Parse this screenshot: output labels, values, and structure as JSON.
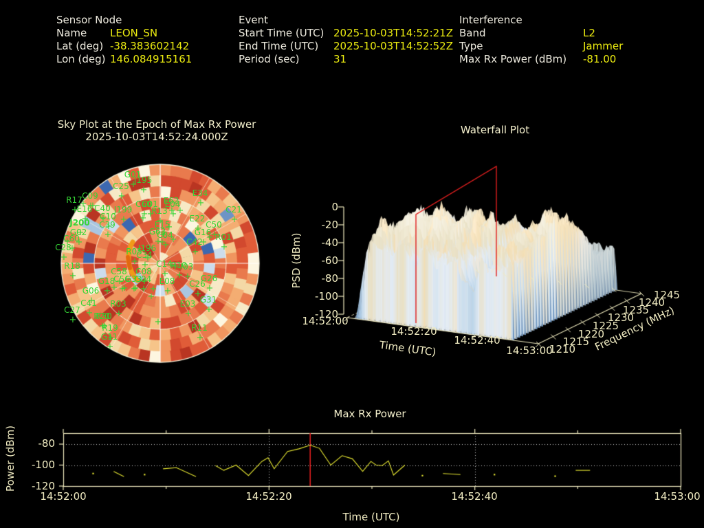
{
  "header": {
    "sensor": {
      "title": "Sensor Node",
      "rows": [
        {
          "label": "Name",
          "value": "LEON_SN"
        },
        {
          "label": "Lat (deg)",
          "value": "-38.383602142"
        },
        {
          "label": "Lon (deg)",
          "value": "146.084915161"
        }
      ]
    },
    "event": {
      "title": "Event",
      "rows": [
        {
          "label": "Start Time (UTC)",
          "value": "2025-10-03T14:52:21Z"
        },
        {
          "label": "End Time (UTC)",
          "value": "2025-10-03T14:52:52Z"
        },
        {
          "label": "Period (sec)",
          "value": "31"
        }
      ]
    },
    "interference": {
      "title": "Interference",
      "rows": [
        {
          "label": "Band",
          "value": "L2"
        },
        {
          "label": "Type",
          "value": "Jammer"
        },
        {
          "label": "Max Rx Power (dBm)",
          "value": "-81.00"
        }
      ]
    }
  },
  "sky": {
    "title_line1": "Sky Plot at the Epoch of Max Rx Power",
    "title_line2": "2025-10-03T14:52:24.000Z",
    "marker_color": "#35d435",
    "jammer_track_color": "#f09a18",
    "heat_palette": [
      "#b93522",
      "#d2492e",
      "#e05c38",
      "#e97a4d",
      "#f0955f",
      "#f4ad72",
      "#f6c489",
      "#f4d9a6",
      "#f7e9c6",
      "#fdf6e0",
      "#ccdcec",
      "#a9c6e2",
      "#6d94c6",
      "#3c68b0"
    ],
    "heat_weights": [
      6,
      12,
      16,
      14,
      12,
      10,
      8,
      6,
      5,
      3,
      4,
      2,
      1.5,
      1.5
    ]
  },
  "waterfall": {
    "title": "Waterfall Plot",
    "z_label": "PSD (dBm)",
    "z_ticks": [
      "0",
      "-20",
      "-40",
      "-60",
      "-80",
      "-100",
      "-120"
    ],
    "time_label": "Time (UTC)",
    "time_ticks": [
      "14:52:00",
      "14:52:20",
      "14:52:40",
      "14:53:00"
    ],
    "freq_label": "Frequency (MHz)",
    "freq_ticks": [
      "1210",
      "1215",
      "1220",
      "1225",
      "1230",
      "1235",
      "1240",
      "1245"
    ],
    "slice_color": "#e01f1f"
  },
  "timeseries": {
    "title": "Max Rx Power",
    "ylabel": "Power (dBm)",
    "xlabel": "Time (UTC)",
    "yticks": [
      "-80",
      "-100",
      "-120"
    ],
    "xticks": [
      "14:52:00",
      "14:52:20",
      "14:52:40",
      "14:53:00"
    ],
    "line_color": "#e8e832",
    "marker_line_color": "#e01f1f"
  },
  "chart_data": [
    {
      "type": "heatmap",
      "subtype": "polar-sky-plot",
      "title": "Sky Plot at the Epoch of Max Rx Power",
      "epoch": "2025-10-03T14:52:24.000Z",
      "rings_deg": [
        30,
        60,
        90
      ],
      "satellites": [
        {
          "id": "G01",
          "x": 193,
          "y": 254
        },
        {
          "id": "J195",
          "x": 208,
          "y": 262
        },
        {
          "id": "C25",
          "x": 176,
          "y": 271
        },
        {
          "id": "C09",
          "x": 131,
          "y": 285
        },
        {
          "id": "R17",
          "x": 108,
          "y": 291
        },
        {
          "id": "E34",
          "x": 291,
          "y": 281
        },
        {
          "id": "C21",
          "x": 340,
          "y": 305
        },
        {
          "id": "E16",
          "x": 123,
          "y": 304
        },
        {
          "id": "C40",
          "x": 149,
          "y": 303
        },
        {
          "id": "J199",
          "x": 179,
          "y": 305
        },
        {
          "id": "C60",
          "x": 209,
          "y": 297
        },
        {
          "id": "C01",
          "x": 218,
          "y": 297
        },
        {
          "id": "E62",
          "x": 249,
          "y": 292
        },
        {
          "id": "E04",
          "x": 251,
          "y": 297
        },
        {
          "id": "C10",
          "x": 157,
          "y": 315
        },
        {
          "id": "R13",
          "x": 232,
          "y": 307
        },
        {
          "id": "J200",
          "x": 116,
          "y": 324,
          "bold": true
        },
        {
          "id": "C39",
          "x": 156,
          "y": 327
        },
        {
          "id": "E15",
          "x": 236,
          "y": 327
        },
        {
          "id": "G63",
          "x": 229,
          "y": 337
        },
        {
          "id": "C04",
          "x": 240,
          "y": 342
        },
        {
          "id": "E22",
          "x": 287,
          "y": 318
        },
        {
          "id": "C50",
          "x": 311,
          "y": 327
        },
        {
          "id": "G16",
          "x": 295,
          "y": 338
        },
        {
          "id": "R01",
          "x": 325,
          "y": 345
        },
        {
          "id": "C42",
          "x": 283,
          "y": 352
        },
        {
          "id": "G02",
          "x": 114,
          "y": 338
        },
        {
          "id": "C60",
          "x": 104,
          "y": 347
        },
        {
          "id": "C28",
          "x": 92,
          "y": 360
        },
        {
          "id": "R18",
          "x": 105,
          "y": 387
        },
        {
          "id": "J196",
          "x": 214,
          "y": 361
        },
        {
          "id": "R05",
          "x": 195,
          "y": 366
        },
        {
          "id": "C34",
          "x": 210,
          "y": 371
        },
        {
          "id": "C14",
          "x": 239,
          "y": 384
        },
        {
          "id": "R10",
          "x": 260,
          "y": 386
        },
        {
          "id": "I03",
          "x": 272,
          "y": 388
        },
        {
          "id": "C58",
          "x": 173,
          "y": 395
        },
        {
          "id": "C08",
          "x": 209,
          "y": 395
        },
        {
          "id": "G26",
          "x": 304,
          "y": 405
        },
        {
          "id": "C26",
          "x": 287,
          "y": 413
        },
        {
          "id": "G18",
          "x": 155,
          "y": 409
        },
        {
          "id": "C56",
          "x": 177,
          "y": 406
        },
        {
          "id": "G33",
          "x": 194,
          "y": 406
        },
        {
          "id": "G04",
          "x": 208,
          "y": 406
        },
        {
          "id": "E08",
          "x": 243,
          "y": 409
        },
        {
          "id": "G06",
          "x": 132,
          "y": 423
        },
        {
          "id": "G31",
          "x": 303,
          "y": 436
        },
        {
          "id": "E03",
          "x": 273,
          "y": 442
        },
        {
          "id": "C41",
          "x": 129,
          "y": 441
        },
        {
          "id": "C27",
          "x": 105,
          "y": 451
        },
        {
          "id": "R03",
          "x": 172,
          "y": 442
        },
        {
          "id": "R20",
          "x": 148,
          "y": 460
        },
        {
          "id": "R30",
          "x": 151,
          "y": 460
        },
        {
          "id": "R19",
          "x": 160,
          "y": 477
        },
        {
          "id": "G11",
          "x": 159,
          "y": 490
        },
        {
          "id": "R11",
          "x": 290,
          "y": 477
        }
      ],
      "extra_markers": [
        [
          121,
          297
        ],
        [
          135,
          300
        ],
        [
          166,
          419
        ],
        [
          181,
          420
        ],
        [
          197,
          420
        ],
        [
          223,
          421
        ],
        [
          236,
          353
        ],
        [
          252,
          349
        ],
        [
          98,
          352
        ],
        [
          262,
          307
        ],
        [
          305,
          346
        ],
        [
          230,
          469
        ],
        [
          208,
          318
        ],
        [
          246,
          331
        ],
        [
          255,
          388
        ],
        [
          220,
          432
        ]
      ]
    },
    {
      "type": "area",
      "subtype": "3d-surface-waterfall",
      "title": "Waterfall Plot",
      "xlabel": "Time (UTC)",
      "ylabel": "Frequency (MHz)",
      "zlabel": "PSD (dBm)",
      "time_range": [
        "14:52:00",
        "14:53:00"
      ],
      "freq_range_mhz": [
        1210,
        1245
      ],
      "psd_range_dbm": [
        -120,
        0
      ],
      "data_time_span_s": [
        2,
        52
      ],
      "slice_marker_time": "14:52:24"
    },
    {
      "type": "line",
      "title": "Max Rx Power",
      "xlabel": "Time (UTC)",
      "ylabel": "Power (dBm)",
      "x_range": [
        "14:52:00",
        "14:53:00"
      ],
      "ylim": [
        -120,
        -72
      ],
      "grid": "dotted at -80,-100 and 14:52:20, 14:52:40",
      "marker_time_s": 24,
      "marker_value_dbm": -81,
      "segments": [
        [
          [
            2.9,
            -108
          ]
        ],
        [
          [
            4.9,
            -106
          ],
          [
            5.9,
            -111
          ]
        ],
        [
          [
            7.9,
            -109
          ]
        ],
        [
          [
            9.7,
            -103.5
          ],
          [
            11,
            -102.5
          ],
          [
            12.9,
            -111
          ]
        ],
        [
          [
            14.8,
            -100.5
          ],
          [
            15.6,
            -105
          ],
          [
            16.8,
            -100
          ],
          [
            18,
            -110
          ],
          [
            19.3,
            -96.5
          ],
          [
            19.9,
            -93
          ],
          [
            20.5,
            -103.5
          ],
          [
            21.8,
            -87
          ],
          [
            22.9,
            -84.5
          ],
          [
            24,
            -81
          ],
          [
            24.9,
            -84
          ],
          [
            26,
            -100
          ],
          [
            27.1,
            -91
          ],
          [
            28.1,
            -94
          ],
          [
            29.1,
            -106
          ],
          [
            29.9,
            -96.5
          ],
          [
            30.4,
            -100
          ],
          [
            31,
            -100.5
          ],
          [
            31.6,
            -96
          ],
          [
            32.1,
            -109.5
          ],
          [
            33.2,
            -100
          ]
        ],
        [
          [
            34.9,
            -110
          ]
        ],
        [
          [
            36.9,
            -108
          ],
          [
            38.6,
            -109
          ]
        ],
        [
          [
            41.9,
            -109
          ]
        ],
        [
          [
            47.8,
            -110.5
          ]
        ],
        [
          [
            49.8,
            -105
          ],
          [
            51.2,
            -105
          ]
        ]
      ]
    }
  ]
}
